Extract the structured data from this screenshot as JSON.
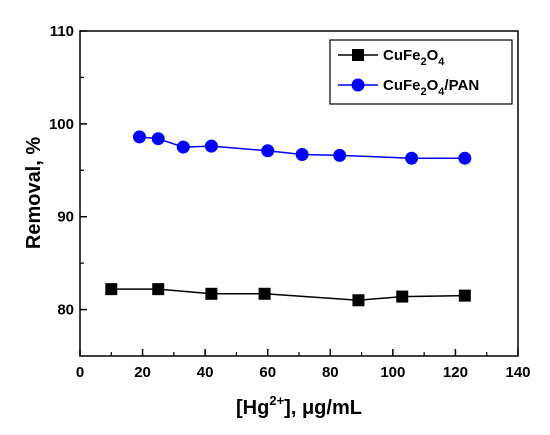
{
  "chart_data": {
    "type": "line",
    "xlabel": {
      "prefix": "[Hg",
      "sup": "2+",
      "suffix": "], μg/mL"
    },
    "ylabel": "Removal, %",
    "xlim": [
      0,
      140
    ],
    "ylim": [
      75,
      110
    ],
    "x_ticks": [
      0,
      20,
      40,
      60,
      80,
      100,
      120,
      140
    ],
    "y_ticks": [
      80,
      90,
      100,
      110
    ],
    "grid": false,
    "legend_position": "top-right",
    "series": [
      {
        "name": "CuFe2O4",
        "name_parts": [
          [
            "CuFe",
            false
          ],
          [
            "2",
            true
          ],
          [
            "O",
            false
          ],
          [
            "4",
            true
          ]
        ],
        "color": "#000000",
        "marker": "square",
        "x": [
          10,
          25,
          42,
          59,
          89,
          103,
          123
        ],
        "y": [
          82.2,
          82.2,
          81.7,
          81.7,
          81.0,
          81.4,
          81.5
        ]
      },
      {
        "name": "CuFe2O4/PAN",
        "name_parts": [
          [
            "CuFe",
            false
          ],
          [
            "2",
            true
          ],
          [
            "O",
            false
          ],
          [
            "4",
            true
          ],
          [
            "/PAN",
            false
          ]
        ],
        "color": "#0000ff",
        "marker": "circle",
        "x": [
          19,
          25,
          33,
          42,
          60,
          71,
          83,
          106,
          123
        ],
        "y": [
          98.6,
          98.4,
          97.5,
          97.6,
          97.1,
          96.7,
          96.6,
          96.3,
          96.3
        ]
      }
    ]
  }
}
